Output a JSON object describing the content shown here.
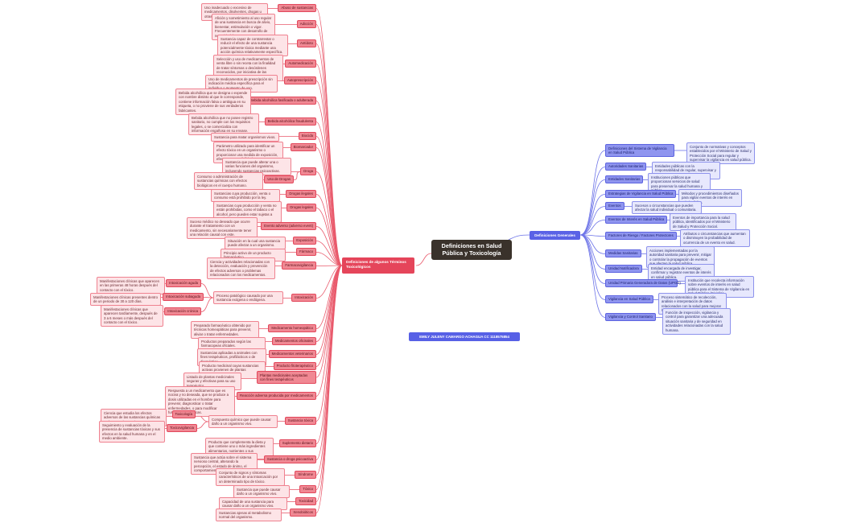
{
  "central_title": "Definiciones en Salud Pública y Toxicología",
  "author": "EMILY JULENY CAMARGO ACHAGUA   CC 1118575854",
  "colors": {
    "left_branch": "#e5455a",
    "right_branch": "#5a62e6",
    "central": "#3a322b"
  },
  "left_branch": {
    "title": "Definiciones de algunos Términos Toxicológicos",
    "items": [
      {
        "term": "Abuso de sustancias",
        "description": "Uso inadecuado o excesivo de medicamentos, disolventes, drogas u otras sustancias."
      },
      {
        "term": "Adicción",
        "description": "Afición y sometimiento al uso regular de una sustancia en busca de alivio, bienestar, estimulación o vigor. Frecuentemente con desarrollo de necesidad de consumo."
      },
      {
        "term": "Antídoto",
        "description": "Sustancia capaz de contrarrestar o reducir el efecto de una sustancia potencialmente tóxica mediante una acción química relativamente específica."
      },
      {
        "term": "Automedicación",
        "description": "Selección y uso de medicamentos de venta libre o sin receta con la finalidad de tratar síntomas o desórdenes reconocidos, por iniciativa de las personas."
      },
      {
        "term": "Autoprescripción",
        "description": "Uso de medicamentos de prescripción sin indicación médica específica para el individuo o momento de uso."
      },
      {
        "term": "Bebida alcohólica fasificada o adulterada",
        "description": "Bebida alcohólica que se designa o expende con nombre distinto al que le corresponde, contiene información falsa o ambigua en su etiqueta, o no proviene de sus verdaderos fabricantes."
      },
      {
        "term": "Bebida alcohólica fraudulenta",
        "description": "Bebida alcohólica que no posee registro sanitario, no cumple con los requisitos legales, o se comercializa con información engañosa en su envase."
      },
      {
        "term": "Biocida",
        "description": "Sustancia para matar organismos vivos."
      },
      {
        "term": "Biomarcador",
        "description": "Parámetro utilizado para identificar un efecto tóxico en un organismo o proporcionar una medida de exposición, efecto o susceptibilidad."
      },
      {
        "term": "Droga",
        "description": "Sustancia que puede alterar una o varias funciones del organismo, incluyendo sustancias psicoactivas.",
        "children": [
          {
            "term": "Uso de Drogas",
            "description": "Consumo o administración de sustancias químicas con efectos biológicos en el cuerpo humano."
          }
        ]
      },
      {
        "term": "Drogas ilegales",
        "description": "Sustancias cuya producción, venta o consumo está prohibido por la ley."
      },
      {
        "term": "Drogas legales",
        "description": "Sustancias cuya producción y venta no están prohibidas, como el tabaco o el alcohol, pero pueden estar sujetas a restricciones."
      },
      {
        "term": "Evento adverso (adverso event)",
        "description": "Suceso médico no deseado que ocurre durante el tratamiento con un medicamento, sin necesariamente tener una relación causal con este."
      },
      {
        "term": "Exposición",
        "description": "Situación en la cual una sustancia puede afectar a un organismo."
      },
      {
        "term": "Fármaco",
        "description": "Principio activo de un producto farmacéutico."
      },
      {
        "term": "Farmacovigilancia",
        "description": "Ciencia y actividades relacionadas con la detección, evaluación y prevención de efectos adversos o problemas relacionados con los medicamentos."
      },
      {
        "term": "Intoxicación",
        "description": "Proceso patológico causado por una sustancia exógena o endógena.",
        "children": [
          {
            "term": "Intoxicación aguda",
            "description": "Manifestaciones clínicas que aparecen en las primeras 48 horas después del contacto con el tóxico."
          },
          {
            "term": "Intoxicación subaguda",
            "description": "Manifestaciones clínicas presentes dentro de un periodo de 30 a 120 días."
          },
          {
            "term": "Intoxicación crónica",
            "description": "Manifestaciones clínicas que aparecen tardíamente, después de 3 a 6 meses o más después del contacto con el tóxico."
          }
        ]
      },
      {
        "term": "Medicamento homeopático",
        "description": "Preparado farmacéutico obtenido por técnicas homeopáticas para prevenir, aliviar o tratar enfermedades."
      },
      {
        "term": "Medicamentos oficinales",
        "description": "Productos preparados según las farmacopeas oficiales."
      },
      {
        "term": "Medicamentos veterinarios",
        "description": "Sustancias aplicadas a animales con fines terapéuticos, profilácticos o de diagnóstico."
      },
      {
        "term": "Producto fitoterapéutico",
        "description": "Producto medicinal cuyas sustancias activas provienen de plantas medicinales."
      },
      {
        "term": "Plantas medicinales aceptadas con fines terapéuticos",
        "description": "Listado de plantas medicinales seguras y efectivas para su uso terapéutico."
      },
      {
        "term": "Reacción adversa producida por medicamentos",
        "description": "Respuesta a un medicamento que es nociva y no deseada, que se produce a dosis utilizadas en el hombre para prevenir, diagnosticar o tratar enfermedades, o para modificar funciones fisiológicas."
      },
      {
        "term": "Sustancia tóxica",
        "description": "Compuesto químico que puede causar daño a un organismo vivo.",
        "children": [
          {
            "term": "Toxicología",
            "description": "Ciencia que estudia los efectos adversos de las sustancias químicas en los organismos vivos."
          },
          {
            "term": "Toxicovigilancia",
            "description": "Seguimiento y evaluación de la presencia de sustancias tóxicas y sus efectos en la salud humana y en el medio ambiente."
          }
        ]
      },
      {
        "term": "Suplemento dietario",
        "description": "Producto que complementa la dieta y que contiene uno o más ingredientes alimentarios, nutrientes o sus constituyentes."
      },
      {
        "term": "Sustancia o droga psicoactiva",
        "description": "Sustancia que actúa sobre el sistema nervioso central, alterando la percepción, el estado de ánimo, el comportamiento o la cognición."
      },
      {
        "term": "Síndrome",
        "description": "Conjunto de signos y síntomas característicos de una intoxicación por un determinado tipo de tóxico."
      },
      {
        "term": "Tóxico",
        "description": "Sustancia que puede causar daño a un organismo vivo."
      },
      {
        "term": "Toxicidad",
        "description": "Capacidad de una sustancia para causar daño a un organismo vivo."
      },
      {
        "term": "Xenobióticos",
        "description": "Sustancias ajenas al metabolismo normal del organismo."
      }
    ]
  },
  "right_branch": {
    "title": "Definiciones Generales",
    "items": [
      {
        "term": "Definiciones del Sistema de Vigilancia en Salud Pública",
        "description": "Conjunto de normativas y conceptos establecidos por el Ministerio de Salud y Protección Social para regular y supervisar la vigilancia en salud pública."
      },
      {
        "term": "Autoridades Sanitarias",
        "description": "Entidades públicas con la responsabilidad de regular, supervisar y controlar la salud pública."
      },
      {
        "term": "Entidades Sanitarias",
        "description": "Instituciones públicas que proporcionan servicios de salud para preservar la salud humana y pública."
      },
      {
        "term": "Estrategias de Vigilancia en Salud Pública",
        "description": "Métodos y procedimientos diseñados para vigilar eventos de interés en salud pública."
      },
      {
        "term": "Eventos",
        "description": "Sucesos o circunstancias que pueden afectar la salud individual o comunitaria."
      },
      {
        "term": "Eventos de Interés en Salud Pública",
        "description": "Eventos de importancia para la salud pública, identificados por el Ministerio de Salud y Protección Social."
      },
      {
        "term": "Factores de Riesgo / Factores Protectores",
        "description": "Atributos o circunstancias que aumentan o disminuyen la probabilidad de ocurrencia de un evento en salud."
      },
      {
        "term": "Medidas Sanitarias",
        "description": "Acciones implementadas por la autoridad sanitaria para prevenir, mitigar o controlar la propagación de eventos que afecten la salud pública."
      },
      {
        "term": "Unidad Notificadora",
        "description": "Entidad encargada de investigar, confirmar y registrar eventos de interés en salud pública."
      },
      {
        "term": "Unidad Primaria Generadora de Datos (UPGD)",
        "description": "Institución que recolecta información sobre eventos de interés en salud pública para el Sistema de Vigilancia en Salud Pública (Sivigila)."
      },
      {
        "term": "Vigilancia en Salud Pública",
        "description": "Proceso sistemático de recolección, análisis e interpretación de datos relacionados con la salud para mejorar la práctica en salud pública."
      },
      {
        "term": "Vigilancia y Control Sanitario",
        "description": "Función de inspección, vigilancia y control para garantizar una adecuada situación sanitaria y de seguridad en actividades relacionadas con la salud humana."
      }
    ]
  }
}
